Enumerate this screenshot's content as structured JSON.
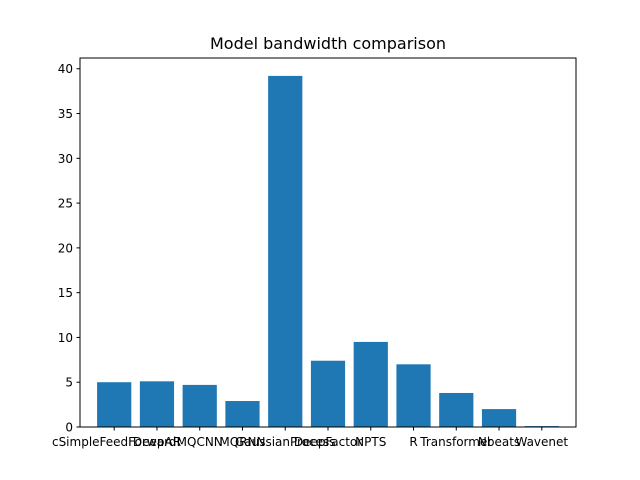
{
  "chart_data": {
    "type": "bar",
    "title": "Model  bandwidth comparison",
    "xlabel": "",
    "ylabel": "",
    "categories": [
      "cSimpleFeedForward",
      "DeepAR",
      "MQCNN",
      "MQRNN",
      "GaussianProcess",
      "DeepFactor",
      "NPTS",
      "R",
      "Transformer",
      "Nbeats",
      "Wavenet"
    ],
    "values": [
      5.0,
      5.1,
      4.7,
      2.9,
      39.2,
      7.4,
      9.5,
      7.0,
      3.8,
      2.0,
      0.1
    ],
    "ylim": [
      0,
      41.2
    ],
    "yticks": [
      0,
      5,
      10,
      15,
      20,
      25,
      30,
      35,
      40
    ],
    "ytick_labels": [
      "0",
      "5",
      "10",
      "15",
      "20",
      "25",
      "30",
      "35",
      "40"
    ],
    "bar_color": "#1f77b4",
    "grid": false,
    "legend": "none"
  }
}
